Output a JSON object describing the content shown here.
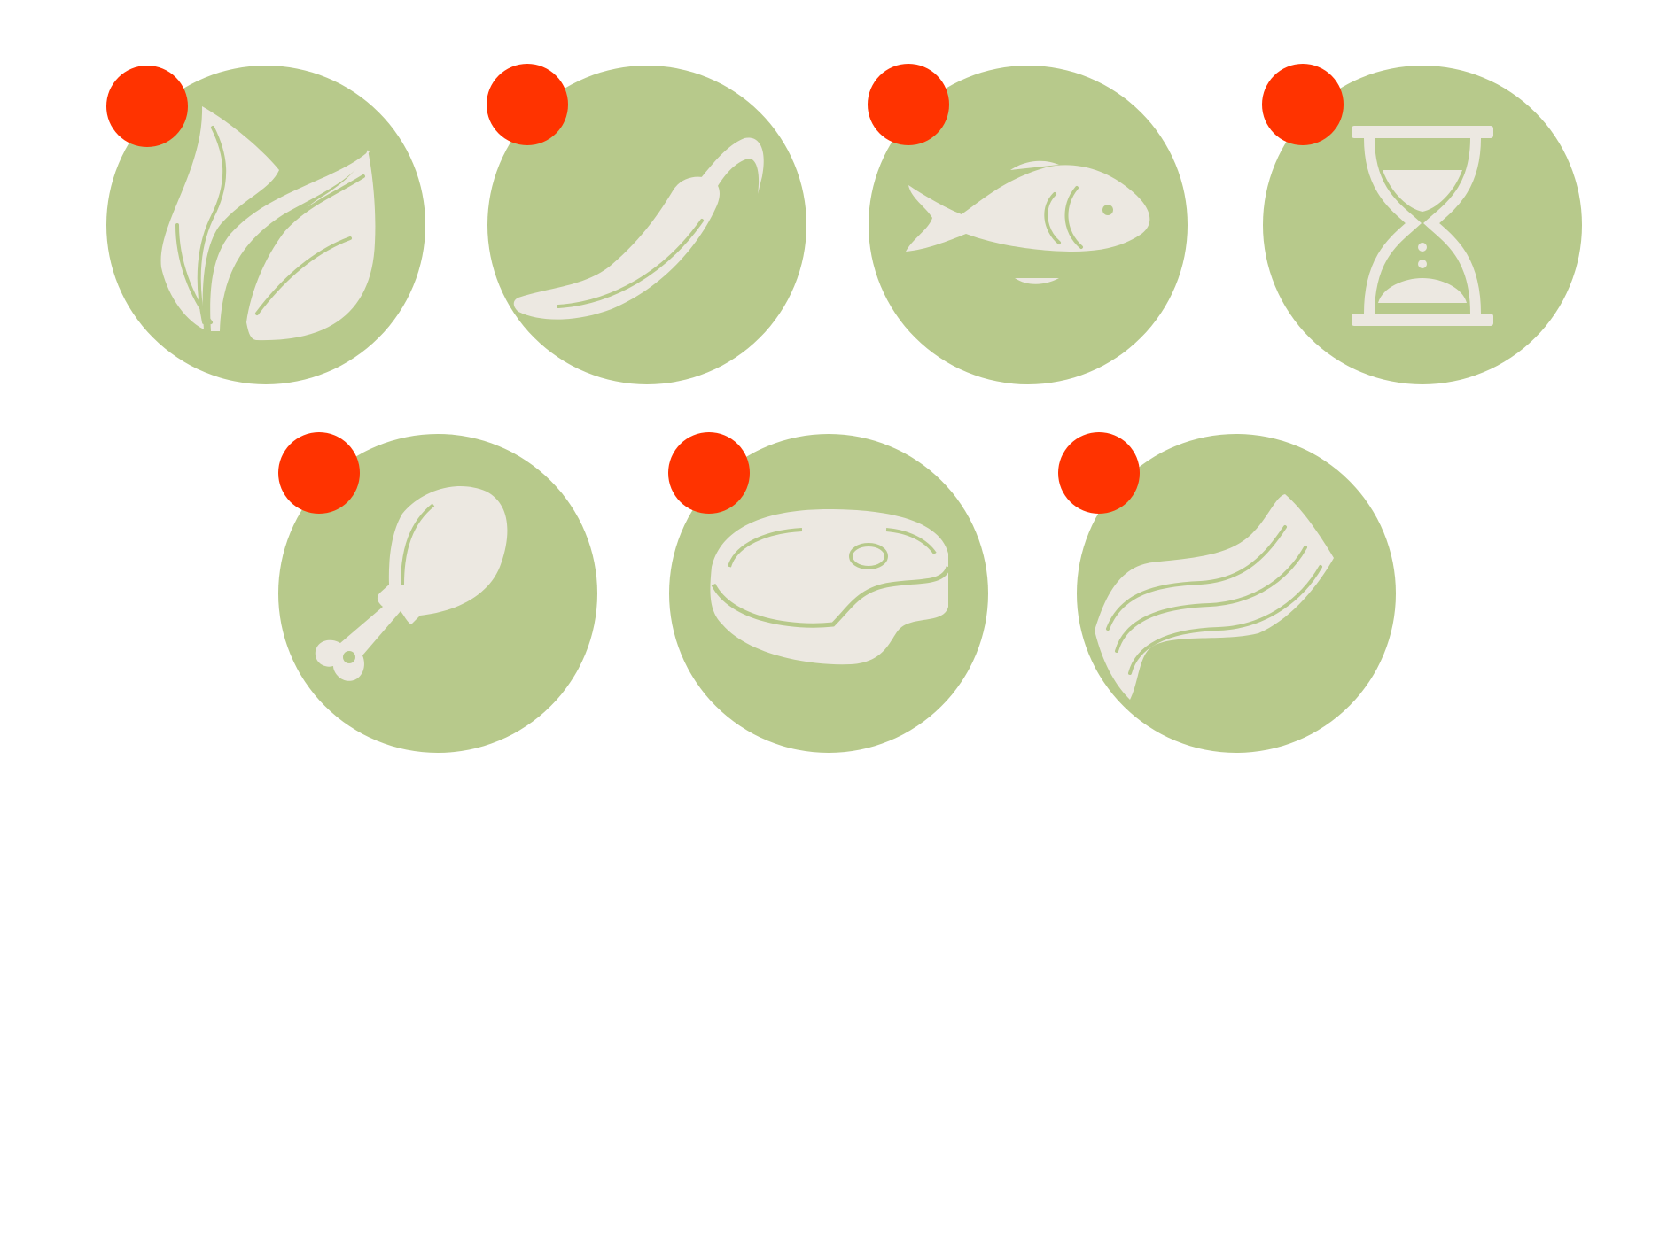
{
  "palette": {
    "badge": "#b7c98b",
    "glyph": "#ece8e1",
    "marker": "#ff3300",
    "background": "#ffffff"
  },
  "badges": [
    {
      "icon": "leaves-icon",
      "marker": "red-dot"
    },
    {
      "icon": "chili-pepper-icon",
      "marker": "red-dot"
    },
    {
      "icon": "fish-icon",
      "marker": "red-dot"
    },
    {
      "icon": "hourglass-icon",
      "marker": "red-dot"
    },
    {
      "icon": "chicken-drumstick-icon",
      "marker": "red-dot"
    },
    {
      "icon": "steak-icon",
      "marker": "red-dot"
    },
    {
      "icon": "bacon-icon",
      "marker": "red-dot"
    }
  ]
}
